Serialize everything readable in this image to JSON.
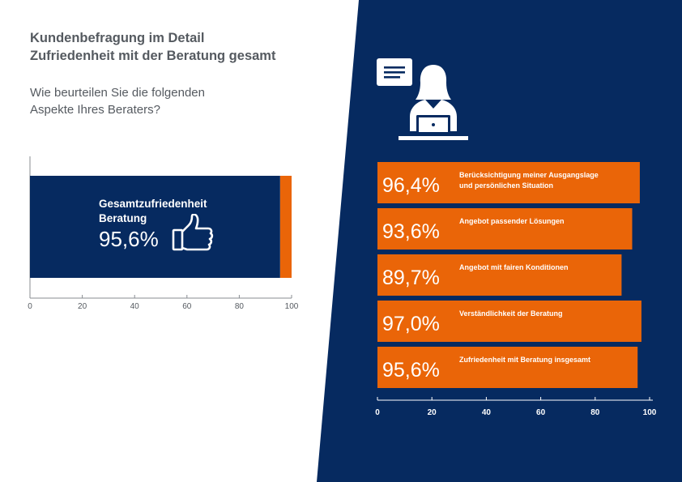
{
  "header": {
    "title_line1": "Kundenbefragung im Detail",
    "title_line2": "Zufriedenheit mit der Beratung gesamt",
    "question_line1": "Wie beurteilen Sie die folgenden",
    "question_line2": "Aspekte Ihres Beraters?"
  },
  "colors": {
    "navy": "#062a60",
    "orange": "#ea6508",
    "text": "#555a60",
    "white": "#ffffff"
  },
  "icons": [
    "document-icon",
    "consultant-at-laptop-icon",
    "thumbs-up-icon"
  ],
  "chart_data": [
    {
      "type": "bar",
      "orientation": "horizontal",
      "categories": [
        "Gesamtzufriedenheit Beratung"
      ],
      "label_lines": [
        "Gesamtzufriedenheit",
        "Beratung"
      ],
      "values": [
        95.6
      ],
      "value_labels": [
        "95,6%"
      ],
      "xlim": [
        0,
        100
      ],
      "xticks": [
        0,
        20,
        40,
        60,
        80,
        100
      ],
      "xtick_labels": [
        "0",
        "20",
        "40",
        "60",
        "80",
        "100"
      ],
      "remainder_color": "#ea6508",
      "bar_color": "#062a60"
    },
    {
      "type": "bar",
      "orientation": "horizontal",
      "categories": [
        "Berücksichtigung meiner Ausgangslage und persönlichen Situation",
        "Angebot passender Lösungen",
        "Angebot mit fairen Konditionen",
        "Verständlichkeit der Beratung",
        "Zufriedenheit mit Beratung insgesamt"
      ],
      "category_lines": [
        [
          "Berücksichtigung meiner Ausgangslage",
          "und persönlichen Situation"
        ],
        [
          "Angebot passender Lösungen"
        ],
        [
          "Angebot mit fairen Konditionen"
        ],
        [
          "Verständlichkeit der Beratung"
        ],
        [
          "Zufriedenheit mit Beratung insgesamt"
        ]
      ],
      "values": [
        96.4,
        93.6,
        89.7,
        97.0,
        95.6
      ],
      "value_labels": [
        "96,4%",
        "93,6%",
        "89,7%",
        "97,0%",
        "95,6%"
      ],
      "xlim": [
        0,
        100
      ],
      "xticks": [
        0,
        20,
        40,
        60,
        80,
        100
      ],
      "xtick_labels": [
        "0",
        "20",
        "40",
        "60",
        "80",
        "100"
      ],
      "bar_color": "#ea6508"
    }
  ]
}
